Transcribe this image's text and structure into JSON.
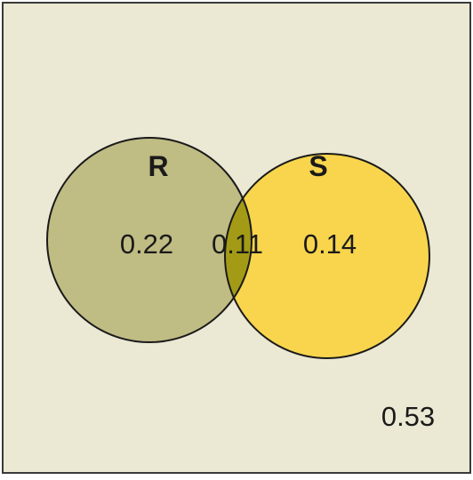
{
  "diagram": {
    "sets": [
      {
        "label": "R",
        "color": "#bfbc84"
      },
      {
        "label": "S",
        "color": "#f8d54c"
      }
    ],
    "regions": {
      "r_only": "0.22",
      "intersection": "0.11",
      "s_only": "0.14",
      "outside": "0.53"
    },
    "colors": {
      "background": "#ebe8d3",
      "intersection": "#a39b16",
      "outline": "#1a1a1a"
    }
  }
}
